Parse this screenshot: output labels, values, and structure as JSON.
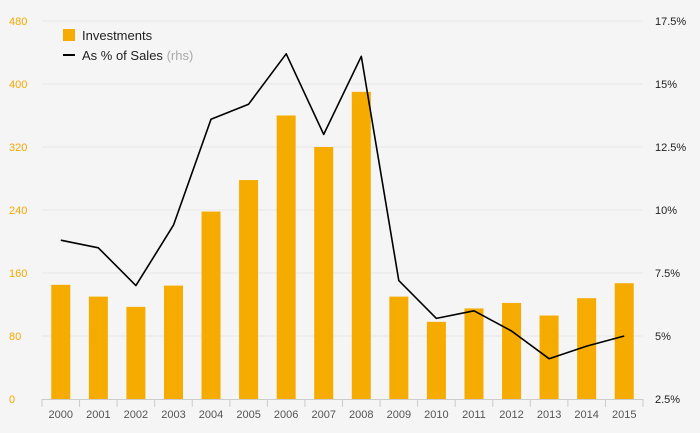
{
  "chart_data": {
    "type": "bar",
    "categories": [
      "2000",
      "2001",
      "2002",
      "2003",
      "2004",
      "2005",
      "2006",
      "2007",
      "2008",
      "2009",
      "2010",
      "2011",
      "2012",
      "2013",
      "2014",
      "2015"
    ],
    "series": [
      {
        "name": "Investments",
        "type": "bar",
        "axis": "left",
        "color": "#f5ab00",
        "values": [
          145,
          130,
          117,
          144,
          238,
          278,
          360,
          320,
          390,
          130,
          98,
          115,
          122,
          106,
          128,
          147
        ]
      },
      {
        "name": "As % of Sales",
        "axis_note": "(rhs)",
        "type": "line",
        "axis": "right",
        "color": "#000000",
        "values": [
          8.8,
          8.5,
          7.0,
          9.4,
          13.6,
          14.2,
          16.2,
          13.0,
          16.1,
          7.2,
          5.7,
          6.0,
          5.2,
          4.1,
          4.6,
          5.0
        ]
      }
    ],
    "y_left": {
      "ticks": [
        "0",
        "80",
        "160",
        "240",
        "320",
        "400",
        "480"
      ],
      "range": [
        0,
        480
      ]
    },
    "y_right": {
      "ticks": [
        "2.5%",
        "5%",
        "7.5%",
        "10%",
        "12.5%",
        "15%",
        "17.5%"
      ],
      "range": [
        2.5,
        17.5
      ]
    },
    "grid": true,
    "legend_position": "top-left",
    "colors": {
      "bar": "#f5ab00",
      "line": "#000000",
      "grid": "#e6e6e6",
      "left_axis_text": "#f5a800"
    }
  }
}
